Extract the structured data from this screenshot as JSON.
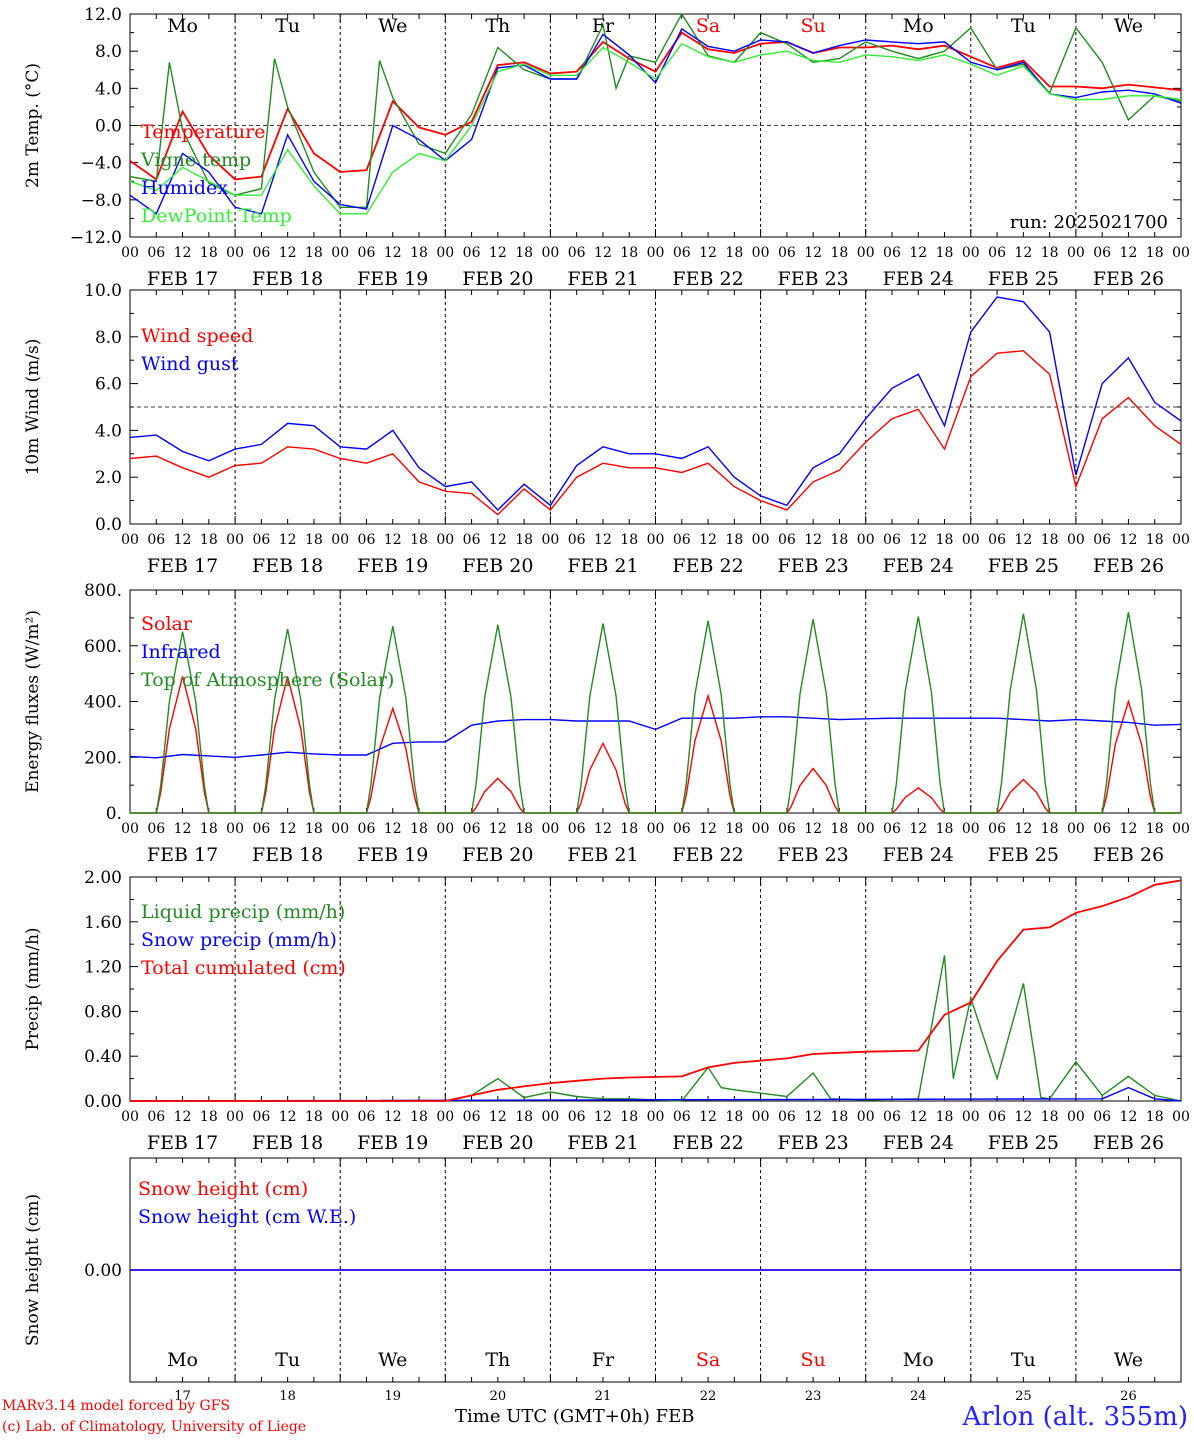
{
  "chart_data": [
    {
      "type": "line",
      "ylabel": "2m Temp. (°C)",
      "ylim": [
        -12,
        12
      ],
      "yticks": [
        "12.0",
        "8.0",
        "4.0",
        "0.0",
        "−4.0",
        "−8.0",
        "−12.0"
      ],
      "xlim_hours": [
        0,
        240
      ],
      "run_label": "run: 2025021700",
      "series": [
        {
          "name": "Temperature",
          "color": "#ff0000",
          "x": [
            0,
            6,
            12,
            18,
            24,
            30,
            36,
            42,
            48,
            54,
            60,
            66,
            72,
            78,
            84,
            90,
            96,
            102,
            108,
            114,
            120,
            126,
            132,
            138,
            144,
            150,
            156,
            162,
            168,
            174,
            180,
            186,
            192,
            198,
            204,
            210,
            216,
            222,
            228,
            234,
            240
          ],
          "values": [
            -3.8,
            -5.8,
            1.5,
            -3.2,
            -5.8,
            -5.5,
            1.8,
            -3.0,
            -5.0,
            -4.8,
            2.6,
            -0.2,
            -1.0,
            0.4,
            6.5,
            6.8,
            5.6,
            5.8,
            9.0,
            7.2,
            5.8,
            10.0,
            8.2,
            7.8,
            8.8,
            9.0,
            7.8,
            8.4,
            8.4,
            8.6,
            8.2,
            8.6,
            7.4,
            6.2,
            7.0,
            4.2,
            4.2,
            4.0,
            4.4,
            4.1,
            3.8
          ]
        },
        {
          "name": "Vigne temp",
          "color": "#228b22",
          "x": [
            0,
            6,
            9,
            12,
            18,
            24,
            30,
            33,
            36,
            42,
            48,
            54,
            57,
            60,
            66,
            72,
            78,
            84,
            90,
            96,
            102,
            108,
            111,
            114,
            120,
            126,
            132,
            138,
            144,
            150,
            156,
            162,
            168,
            174,
            180,
            186,
            192,
            198,
            204,
            210,
            216,
            222,
            228,
            234,
            240
          ],
          "values": [
            -5.5,
            -6.0,
            6.8,
            -0.5,
            -6.2,
            -7.5,
            -6.8,
            7.2,
            2.0,
            -5.0,
            -8.8,
            -8.8,
            7.0,
            3.0,
            -2.0,
            -3.0,
            1.2,
            8.4,
            6.0,
            5.0,
            5.0,
            10.8,
            4.0,
            7.5,
            6.8,
            12.0,
            7.5,
            6.8,
            10.0,
            8.8,
            6.8,
            7.2,
            9.0,
            8.0,
            7.2,
            8.0,
            10.5,
            6.0,
            6.6,
            3.5,
            10.5,
            6.8,
            0.6,
            3.2,
            2.6
          ]
        },
        {
          "name": "Humidex",
          "color": "#0000ff",
          "x": [
            0,
            6,
            12,
            18,
            24,
            30,
            36,
            42,
            48,
            54,
            60,
            66,
            72,
            78,
            84,
            90,
            96,
            102,
            108,
            114,
            120,
            126,
            132,
            138,
            144,
            150,
            156,
            162,
            168,
            174,
            180,
            186,
            192,
            198,
            204,
            210,
            216,
            222,
            228,
            234,
            240
          ],
          "values": [
            -7.5,
            -9.5,
            -3.0,
            -5.0,
            -8.8,
            -9.5,
            -1.0,
            -6.0,
            -8.5,
            -9.0,
            0.0,
            -1.5,
            -3.8,
            -1.5,
            6.2,
            6.5,
            5.0,
            5.0,
            9.8,
            7.6,
            4.6,
            10.4,
            8.5,
            8.0,
            9.2,
            9.0,
            7.8,
            8.6,
            9.2,
            9.0,
            8.8,
            9.0,
            6.8,
            6.0,
            6.8,
            3.4,
            3.0,
            3.6,
            3.8,
            3.4,
            2.4
          ]
        },
        {
          "name": "DewPoint Temp",
          "color": "#33ee33",
          "x": [
            0,
            6,
            12,
            18,
            24,
            30,
            36,
            42,
            48,
            54,
            60,
            66,
            72,
            78,
            84,
            90,
            96,
            102,
            108,
            114,
            120,
            126,
            132,
            138,
            144,
            150,
            156,
            162,
            168,
            174,
            180,
            186,
            192,
            198,
            204,
            210,
            216,
            222,
            228,
            234,
            240
          ],
          "values": [
            -6.0,
            -7.0,
            -4.5,
            -6.0,
            -7.5,
            -7.5,
            -2.6,
            -6.5,
            -9.5,
            -9.5,
            -5.0,
            -3.0,
            -3.8,
            0.0,
            5.8,
            6.6,
            5.4,
            5.4,
            8.4,
            6.8,
            5.0,
            8.8,
            7.4,
            6.8,
            7.6,
            8.0,
            7.0,
            6.8,
            7.6,
            7.4,
            7.0,
            7.6,
            6.6,
            5.4,
            6.4,
            3.4,
            2.8,
            2.8,
            3.2,
            3.2,
            2.8
          ]
        }
      ]
    },
    {
      "type": "line",
      "ylabel": "10m Wind (m/s)",
      "ylim": [
        0,
        10
      ],
      "yticks": [
        "10.0",
        "8.0",
        "6.0",
        "4.0",
        "2.0",
        "0.0"
      ],
      "xlim_hours": [
        0,
        240
      ],
      "series": [
        {
          "name": "Wind speed",
          "color": "#ff0000",
          "x": [
            0,
            6,
            12,
            18,
            24,
            30,
            36,
            42,
            48,
            54,
            60,
            66,
            72,
            78,
            84,
            90,
            96,
            102,
            108,
            114,
            120,
            126,
            132,
            138,
            144,
            150,
            156,
            162,
            168,
            174,
            180,
            186,
            192,
            198,
            204,
            210,
            216,
            222,
            228,
            234,
            240
          ],
          "values": [
            2.8,
            2.9,
            2.4,
            2.0,
            2.5,
            2.6,
            3.3,
            3.2,
            2.8,
            2.6,
            3.0,
            1.8,
            1.4,
            1.3,
            0.4,
            1.5,
            0.6,
            2.0,
            2.6,
            2.4,
            2.4,
            2.2,
            2.6,
            1.6,
            1.0,
            0.6,
            1.8,
            2.3,
            3.5,
            4.5,
            4.9,
            3.2,
            6.3,
            7.3,
            7.4,
            6.4,
            1.6,
            4.5,
            5.4,
            4.2,
            3.4
          ]
        },
        {
          "name": "Wind gust",
          "color": "#0000ff",
          "x": [
            0,
            6,
            12,
            18,
            24,
            30,
            36,
            42,
            48,
            54,
            60,
            66,
            72,
            78,
            84,
            90,
            96,
            102,
            108,
            114,
            120,
            126,
            132,
            138,
            144,
            150,
            156,
            162,
            168,
            174,
            180,
            186,
            192,
            198,
            204,
            210,
            216,
            222,
            228,
            234,
            240
          ],
          "values": [
            3.7,
            3.8,
            3.1,
            2.7,
            3.2,
            3.4,
            4.3,
            4.2,
            3.3,
            3.2,
            4.0,
            2.4,
            1.6,
            1.8,
            0.6,
            1.7,
            0.8,
            2.5,
            3.3,
            3.0,
            3.0,
            2.8,
            3.3,
            2.0,
            1.2,
            0.8,
            2.4,
            3.0,
            4.5,
            5.8,
            6.4,
            4.2,
            8.2,
            9.7,
            9.5,
            8.2,
            2.1,
            6.0,
            7.1,
            5.2,
            4.4
          ]
        }
      ]
    },
    {
      "type": "line",
      "ylabel": "Energy fluxes (W/m²)",
      "ylim": [
        0,
        800
      ],
      "yticks": [
        "800.",
        "600.",
        "400.",
        "200.",
        "0."
      ],
      "xlim_hours": [
        0,
        240
      ],
      "series": [
        {
          "name": "Solar",
          "color": "#ff0000",
          "daily_peak_hour": 12,
          "daily_peaks": [
            490,
            490,
            375,
            125,
            250,
            420,
            160,
            90,
            120,
            400
          ]
        },
        {
          "name": "Infrared",
          "color": "#0000ff",
          "x": [
            0,
            6,
            12,
            18,
            24,
            30,
            36,
            42,
            48,
            54,
            60,
            66,
            72,
            78,
            84,
            90,
            96,
            102,
            108,
            114,
            120,
            126,
            132,
            138,
            144,
            150,
            156,
            162,
            168,
            174,
            180,
            186,
            192,
            198,
            204,
            210,
            216,
            222,
            228,
            234,
            240
          ],
          "values": [
            203,
            198,
            210,
            205,
            200,
            208,
            218,
            212,
            208,
            208,
            250,
            255,
            255,
            315,
            330,
            335,
            335,
            330,
            330,
            330,
            300,
            340,
            340,
            340,
            345,
            345,
            340,
            335,
            338,
            340,
            340,
            340,
            340,
            340,
            335,
            330,
            335,
            330,
            325,
            315,
            318
          ]
        },
        {
          "name": "Top of Atmosphere (Solar)",
          "color": "#228b22",
          "daily_peak_hour": 12,
          "daily_peaks": [
            650,
            660,
            670,
            675,
            680,
            690,
            695,
            705,
            715,
            720
          ]
        }
      ]
    },
    {
      "type": "line",
      "ylabel": "Precip (mm/h)",
      "ylim": [
        0,
        2
      ],
      "yticks": [
        "2.00",
        "1.60",
        "1.20",
        "0.80",
        "0.40",
        "0.00"
      ],
      "xlim_hours": [
        0,
        240
      ],
      "series": [
        {
          "name": "Liquid precip (mm/h)",
          "color": "#228b22",
          "x": [
            0,
            72,
            78,
            84,
            90,
            96,
            102,
            108,
            114,
            126,
            132,
            135,
            138,
            150,
            156,
            160,
            168,
            180,
            186,
            188,
            192,
            198,
            204,
            208,
            210,
            216,
            222,
            228,
            234,
            240
          ],
          "values": [
            0,
            0,
            0.05,
            0.2,
            0.03,
            0.08,
            0.04,
            0.02,
            0.02,
            0,
            0.3,
            0.12,
            0.1,
            0.04,
            0.25,
            0.02,
            0.01,
            0.02,
            1.3,
            0.2,
            0.92,
            0.2,
            1.05,
            0.03,
            0.02,
            0.35,
            0.05,
            0.22,
            0.05,
            0
          ]
        },
        {
          "name": "Snow precip (mm/h)",
          "color": "#0000ff",
          "x": [
            0,
            222,
            228,
            234,
            240
          ],
          "values": [
            0,
            0.02,
            0.12,
            0.02,
            0
          ]
        },
        {
          "name": "Total cumulated (cm)",
          "color": "#ff0000",
          "x": [
            0,
            72,
            78,
            84,
            90,
            96,
            102,
            108,
            114,
            126,
            132,
            138,
            150,
            156,
            168,
            180,
            186,
            192,
            198,
            204,
            210,
            216,
            222,
            228,
            234,
            240
          ],
          "values": [
            0,
            0,
            0.05,
            0.1,
            0.13,
            0.16,
            0.18,
            0.2,
            0.21,
            0.22,
            0.3,
            0.34,
            0.38,
            0.42,
            0.44,
            0.45,
            0.77,
            0.88,
            1.25,
            1.53,
            1.55,
            1.68,
            1.74,
            1.82,
            1.93,
            1.97
          ]
        }
      ]
    },
    {
      "type": "line",
      "ylabel": "Snow height (cm)",
      "ylim": [
        -1,
        1
      ],
      "yticks": [
        "0.00"
      ],
      "xlim_hours": [
        0,
        240
      ],
      "series": [
        {
          "name": "Snow height (cm)",
          "color": "#ff0000",
          "x": [
            0,
            240
          ],
          "values": [
            0,
            0
          ]
        },
        {
          "name": "Snow height (cm W.E.)",
          "color": "#0000ff",
          "x": [
            0,
            240
          ],
          "values": [
            0,
            0
          ]
        }
      ]
    }
  ],
  "hour_ticks": [
    "00",
    "06",
    "12",
    "18"
  ],
  "date_labels": [
    "FEB 17",
    "FEB 18",
    "FEB 19",
    "FEB 20",
    "FEB 21",
    "FEB 22",
    "FEB 23",
    "FEB 24",
    "FEB 25",
    "FEB 26"
  ],
  "weekdays": [
    {
      "label": "Mo",
      "color": "#000000"
    },
    {
      "label": "Tu",
      "color": "#000000"
    },
    {
      "label": "We",
      "color": "#000000"
    },
    {
      "label": "Th",
      "color": "#000000"
    },
    {
      "label": "Fr",
      "color": "#000000"
    },
    {
      "label": "Sa",
      "color": "#ff0000"
    },
    {
      "label": "Su",
      "color": "#ff0000"
    },
    {
      "label": "Mo",
      "color": "#000000"
    },
    {
      "label": "Tu",
      "color": "#000000"
    },
    {
      "label": "We",
      "color": "#000000"
    }
  ],
  "day_numbers": [
    "17",
    "18",
    "19",
    "20",
    "21",
    "22",
    "23",
    "24",
    "25",
    "26"
  ],
  "x_title": "Time UTC (GMT+0h) FEB",
  "station": "Arlon (alt. 355m)",
  "credit_line1": "MARv3.14 model forced by GFS",
  "credit_line2": "(c) Lab. of Climatology, University of Liege"
}
